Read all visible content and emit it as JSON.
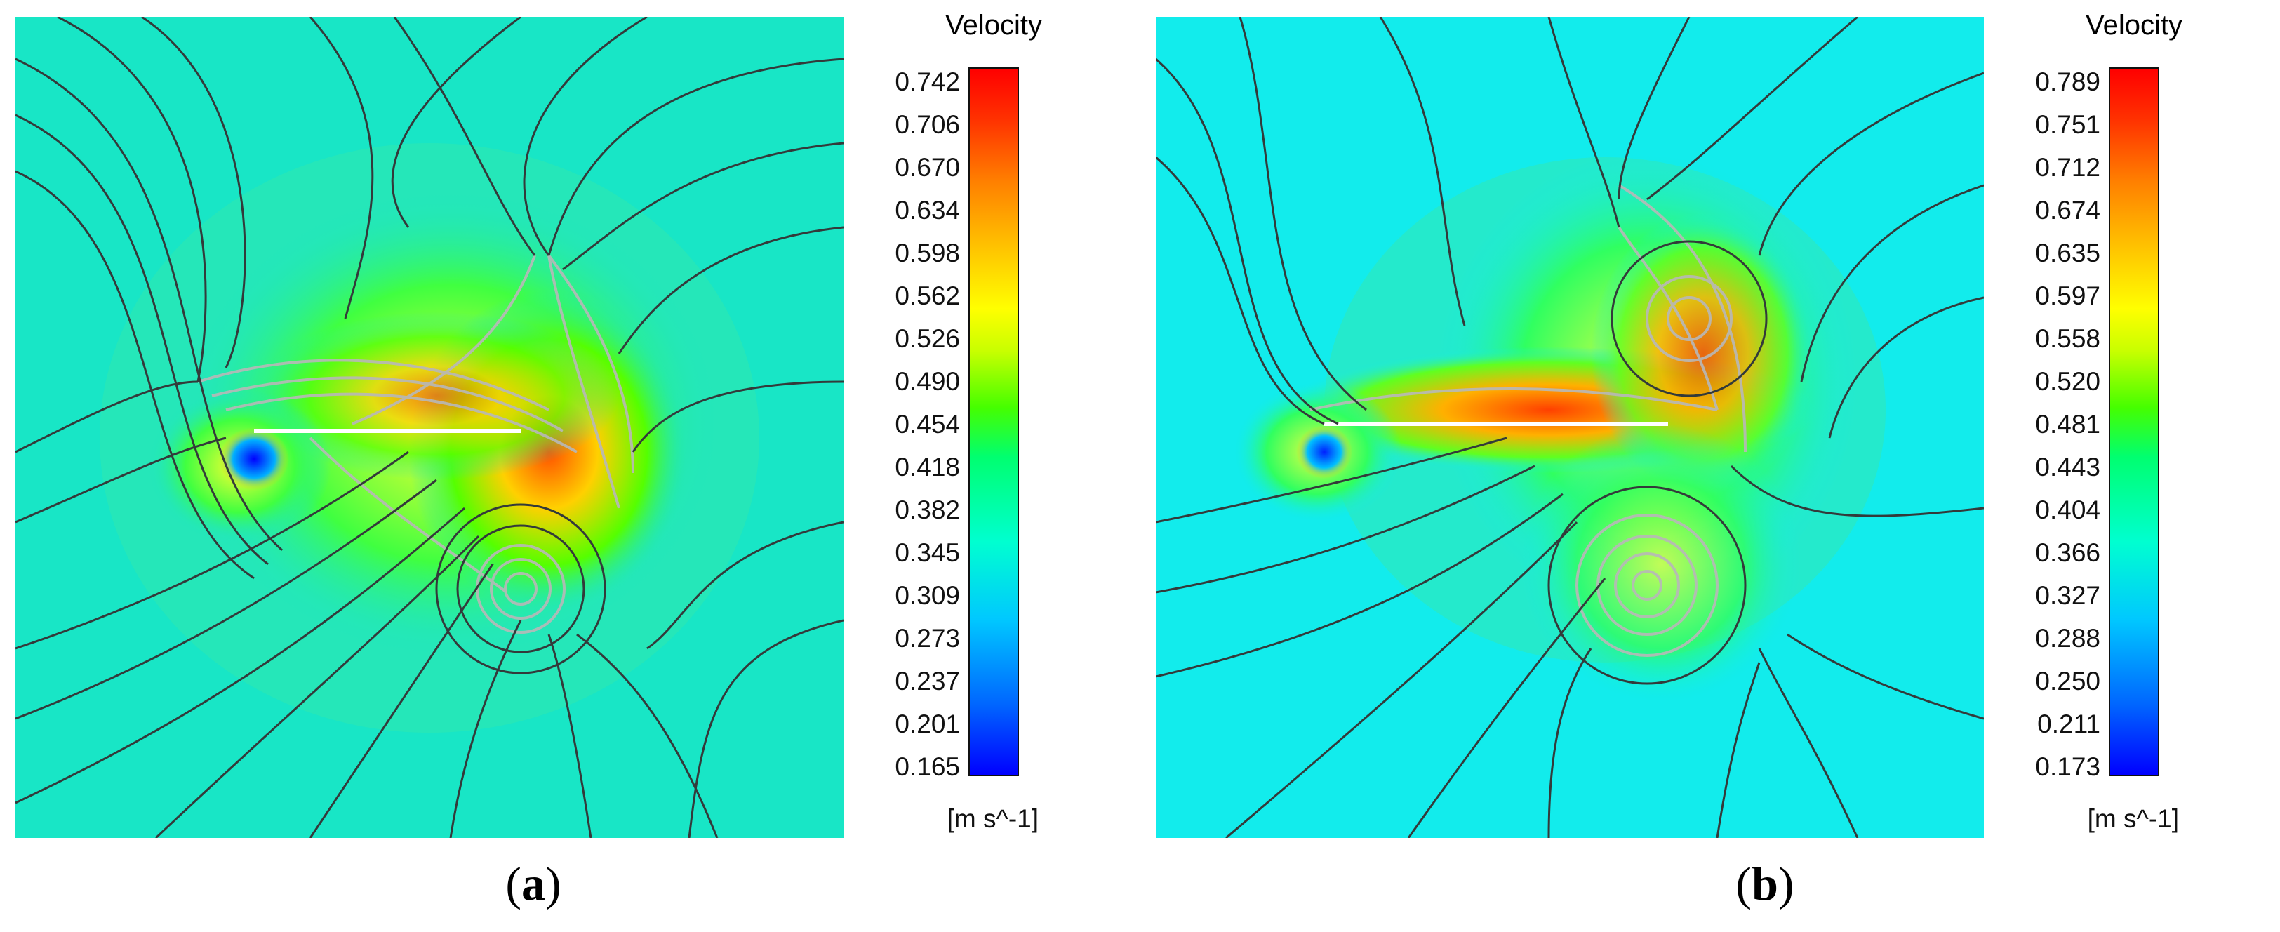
{
  "panels": [
    {
      "legend_title": "Velocity",
      "ticks": [
        "0.742",
        "0.706",
        "0.670",
        "0.634",
        "0.598",
        "0.562",
        "0.526",
        "0.490",
        "0.454",
        "0.418",
        "0.382",
        "0.345",
        "0.309",
        "0.273",
        "0.237",
        "0.201",
        "0.165"
      ],
      "unit": "[m s^-1]",
      "caption_open": "(",
      "caption_letter": "a",
      "caption_close": ")",
      "background_color": "#18e6c6"
    },
    {
      "legend_title": "Velocity",
      "ticks": [
        "0.789",
        "0.751",
        "0.712",
        "0.674",
        "0.635",
        "0.597",
        "0.558",
        "0.520",
        "0.481",
        "0.443",
        "0.404",
        "0.366",
        "0.327",
        "0.288",
        "0.250",
        "0.211",
        "0.173"
      ],
      "unit": "[m s^-1]",
      "caption_open": "(",
      "caption_letter": "b",
      "caption_close": ")",
      "background_color": "#12ecec"
    }
  ]
}
